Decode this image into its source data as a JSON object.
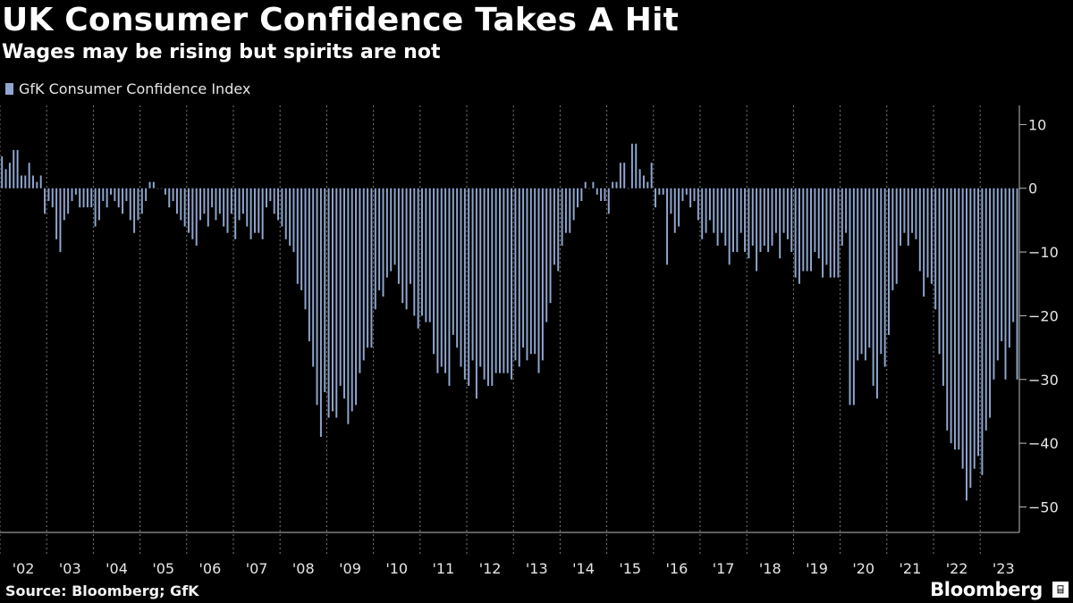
{
  "header": {
    "title": "UK Consumer Confidence Takes A Hit",
    "subtitle": "Wages may be rising but spirits are not"
  },
  "footer": {
    "source": "Source: Bloomberg; GfK",
    "brand": "Bloomberg",
    "brand_icon": "bloomberg-terminal-icon"
  },
  "colors": {
    "bar": "#8fa6cf",
    "background": "#000000",
    "grid": "#7a7a7a"
  },
  "chart_data": {
    "type": "bar",
    "title": "UK Consumer Confidence Takes A Hit",
    "subtitle": "Wages may be rising but spirits are not",
    "legend": [
      "GfK Consumer Confidence Index"
    ],
    "legend_position": "top-left",
    "x_tick_labels": [
      "'02",
      "'03",
      "'04",
      "'05",
      "'06",
      "'07",
      "'08",
      "'09",
      "'10",
      "'11",
      "'12",
      "'13",
      "'14",
      "'15",
      "'16",
      "'17",
      "'18",
      "'19",
      "'20",
      "'21",
      "'22",
      "'23"
    ],
    "y_ticks": [
      10,
      0,
      -10,
      -20,
      -30,
      -40,
      -50
    ],
    "ylim": [
      -54,
      13
    ],
    "y_axis_side": "right",
    "grid": "vertical dashed at year boundaries",
    "series": [
      {
        "name": "GfK Consumer Confidence Index",
        "start": "2002-01",
        "frequency": "monthly",
        "values": [
          5,
          3,
          4,
          6,
          6,
          2,
          2,
          4,
          2,
          1,
          2,
          -4,
          -2,
          -3,
          -8,
          -10,
          -5,
          -4,
          -2,
          -1,
          -3,
          -3,
          -3,
          -3,
          -6,
          -5,
          -2,
          -3,
          -1,
          -2,
          -3,
          -4,
          -2,
          -5,
          -7,
          -5,
          -4,
          -2,
          1,
          1,
          0,
          0,
          -1,
          -3,
          -2,
          -4,
          -5,
          -6,
          -7,
          -8,
          -9,
          -5,
          -4,
          -6,
          -3,
          -5,
          -4,
          -6,
          -7,
          -4,
          -8,
          -5,
          -4,
          -6,
          -8,
          -7,
          -7,
          -8,
          -3,
          -2,
          -4,
          -5,
          -6,
          -8,
          -9,
          -10,
          -15,
          -16,
          -19,
          -24,
          -28,
          -34,
          -39,
          -32,
          -36,
          -35,
          -36,
          -31,
          -33,
          -37,
          -35,
          -34,
          -29,
          -27,
          -25,
          -25,
          -19,
          -16,
          -17,
          -14,
          -13,
          -12,
          -15,
          -18,
          -19,
          -15,
          -20,
          -22,
          -20,
          -21,
          -21,
          -26,
          -29,
          -28,
          -29,
          -31,
          -23,
          -25,
          -28,
          -30,
          -31,
          -27,
          -33,
          -28,
          -30,
          -31,
          -31,
          -29,
          -29,
          -29,
          -29,
          -30,
          -27,
          -28,
          -25,
          -27,
          -26,
          -26,
          -29,
          -27,
          -21,
          -18,
          -12,
          -13,
          -9,
          -7,
          -7,
          -5,
          -3,
          -2,
          1,
          0,
          1,
          -1,
          -2,
          -2,
          -4,
          1,
          1,
          4,
          4,
          0,
          7,
          7,
          3,
          2,
          1,
          4,
          -3,
          -1,
          -1,
          -12,
          -4,
          -7,
          -6,
          -2,
          -1,
          -3,
          -2,
          -5,
          -8,
          -7,
          -5,
          -7,
          -9,
          -7,
          -9,
          -12,
          -10,
          -10,
          -7,
          -10,
          -11,
          -9,
          -13,
          -10,
          -9,
          -10,
          -9,
          -7,
          -11,
          -7,
          -8,
          -10,
          -14,
          -15,
          -13,
          -13,
          -13,
          -10,
          -11,
          -14,
          -12,
          -14,
          -14,
          -14,
          -9,
          -7,
          -34,
          -34,
          -27,
          -26,
          -27,
          -25,
          -31,
          -33,
          -26,
          -28,
          -23,
          -16,
          -15,
          -9,
          -7,
          -9,
          -7,
          -8,
          -13,
          -17,
          -14,
          -15,
          -19,
          -26,
          -31,
          -38,
          -40,
          -41,
          -41,
          -44,
          -49,
          -47,
          -44,
          -42,
          -45,
          -38,
          -36,
          -30,
          -27,
          -24,
          -30,
          -25,
          -21,
          -30
        ]
      }
    ]
  }
}
